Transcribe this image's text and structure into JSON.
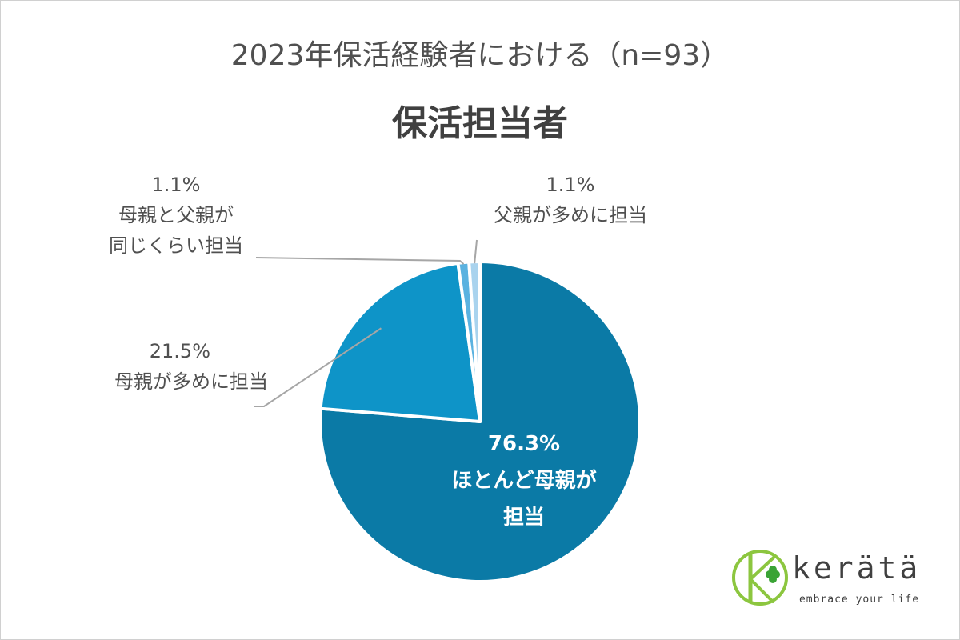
{
  "chart_data": {
    "type": "pie",
    "subtitle": "2023年保活経験者における（n=93）",
    "title": "保活担当者",
    "slices": [
      {
        "name_line1": "ほとんど母親が",
        "name_line2": "担当",
        "value": 76.3,
        "label": "76.3%",
        "color": "#0b7aa6"
      },
      {
        "name_line1": "母親が多めに担当",
        "name_line2": "",
        "value": 21.5,
        "label": "21.5%",
        "color": "#0e94c8"
      },
      {
        "name_line1": "母親と父親が",
        "name_line2": "同じくらい担当",
        "value": 1.1,
        "label": "1.1%",
        "color": "#5ab2e0"
      },
      {
        "name_line1": "父親が多めに担当",
        "name_line2": "",
        "value": 1.1,
        "label": "1.1%",
        "color": "#a9d3ee"
      }
    ]
  },
  "brand": {
    "name": "kerätä",
    "tagline": "embrace your life",
    "logo_letter": "K",
    "logo_color": "#8cc63f"
  }
}
